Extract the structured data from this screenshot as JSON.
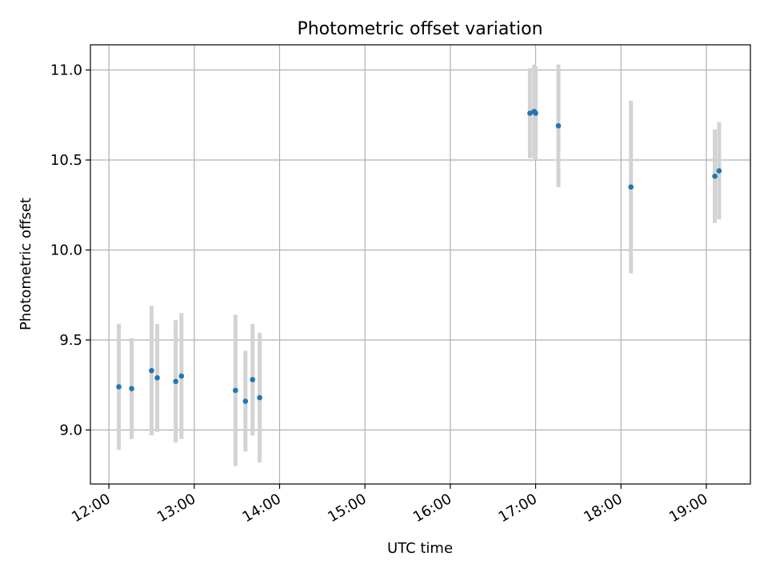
{
  "chart_data": {
    "type": "scatter",
    "title": "Photometric offset variation",
    "xlabel": "UTC time",
    "ylabel": "Photometric offset",
    "xlim": [
      "11:47",
      "19:31"
    ],
    "ylim": [
      8.7,
      11.14
    ],
    "x_ticks": [
      "12:00",
      "13:00",
      "14:00",
      "15:00",
      "16:00",
      "17:00",
      "18:00",
      "19:00"
    ],
    "y_ticks": [
      9.0,
      9.5,
      10.0,
      10.5,
      11.0
    ],
    "y_tick_labels": [
      "9.0",
      "9.5",
      "10.0",
      "10.5",
      "11.0"
    ],
    "grid": true,
    "error_bars": "symmetric, light gray",
    "colors": {
      "point": "#1f77b4",
      "error_bar": "#d3d3d3",
      "grid": "#b0b0b0"
    },
    "points": [
      {
        "x": "12:07",
        "y": 9.24,
        "err": 0.35
      },
      {
        "x": "12:16",
        "y": 9.23,
        "err": 0.28
      },
      {
        "x": "12:30",
        "y": 9.33,
        "err": 0.36
      },
      {
        "x": "12:34",
        "y": 9.29,
        "err": 0.3
      },
      {
        "x": "12:47",
        "y": 9.27,
        "err": 0.34
      },
      {
        "x": "12:51",
        "y": 9.3,
        "err": 0.35
      },
      {
        "x": "13:29",
        "y": 9.22,
        "err": 0.42
      },
      {
        "x": "13:36",
        "y": 9.16,
        "err": 0.28
      },
      {
        "x": "13:41",
        "y": 9.28,
        "err": 0.31
      },
      {
        "x": "13:46",
        "y": 9.18,
        "err": 0.36
      },
      {
        "x": "16:56",
        "y": 10.76,
        "err": 0.25
      },
      {
        "x": "16:59",
        "y": 10.77,
        "err": 0.26
      },
      {
        "x": "17:00",
        "y": 10.76,
        "err": 0.26
      },
      {
        "x": "17:16",
        "y": 10.69,
        "err": 0.34
      },
      {
        "x": "18:07",
        "y": 10.35,
        "err": 0.48
      },
      {
        "x": "19:06",
        "y": 10.41,
        "err": 0.26
      },
      {
        "x": "19:09",
        "y": 10.44,
        "err": 0.27
      }
    ]
  }
}
